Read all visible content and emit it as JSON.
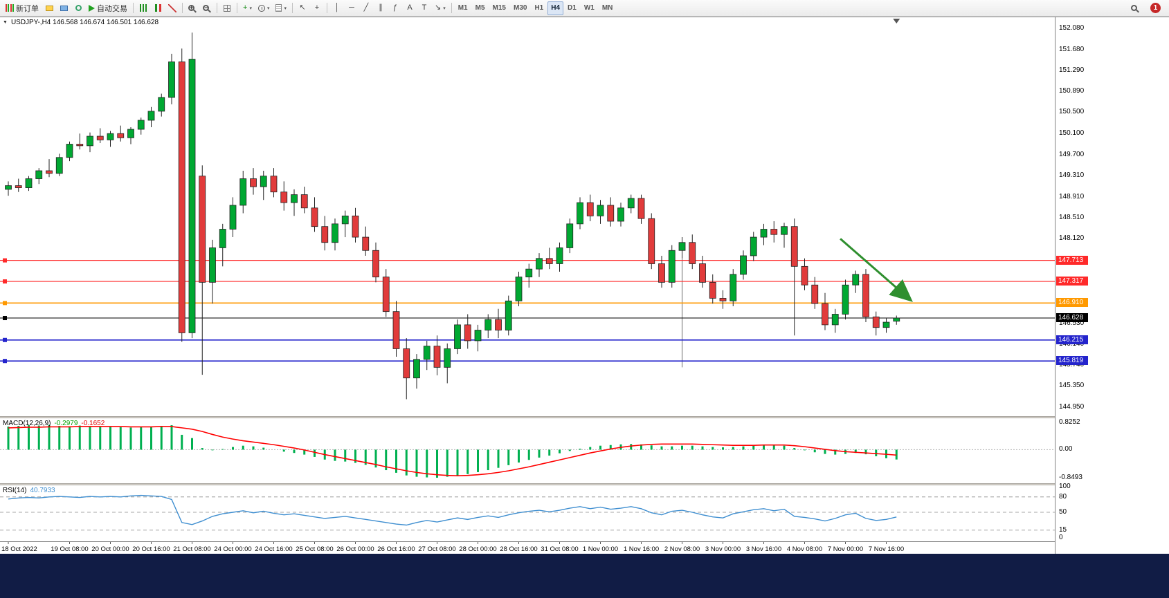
{
  "toolbar": {
    "items": [
      {
        "name": "new-order-button",
        "icon": "neworder",
        "label": "新订单"
      },
      {
        "name": "open-chart-button",
        "icon": "chartadd"
      },
      {
        "name": "profiles-button",
        "icon": "profiles"
      },
      {
        "name": "refresh-button",
        "icon": "refresh"
      },
      {
        "name": "autotrading-button",
        "icon": "play",
        "label": "自动交易"
      },
      {
        "sep": true
      },
      {
        "name": "chart-bars-button",
        "icon": "bars"
      },
      {
        "name": "chart-candles-button",
        "icon": "candle"
      },
      {
        "name": "chart-line-button",
        "icon": "linechart"
      },
      {
        "sep": true
      },
      {
        "name": "zoom-in-button",
        "icon": "magplus"
      },
      {
        "name": "zoom-out-button",
        "icon": "magminus"
      },
      {
        "sep": true
      },
      {
        "name": "tile-windows-button",
        "icon": "tile"
      },
      {
        "sep": true
      },
      {
        "name": "indicators-button",
        "glyph": "+",
        "color": "#1a8f1a",
        "caret": true
      },
      {
        "name": "periods-button",
        "icon": "clock",
        "caret": true
      },
      {
        "name": "templates-button",
        "icon": "template",
        "caret": true
      },
      {
        "sep": true
      },
      {
        "name": "cursor-button",
        "glyph": "↖"
      },
      {
        "name": "crosshair-button",
        "glyph": "+"
      },
      {
        "sep": true
      },
      {
        "name": "vertical-line-button",
        "glyph": "│"
      },
      {
        "name": "horizontal-line-button",
        "glyph": "─"
      },
      {
        "name": "trendline-button",
        "glyph": "╱"
      },
      {
        "name": "channel-button",
        "glyph": "∥"
      },
      {
        "name": "fibonacci-button",
        "glyph": "ƒ"
      },
      {
        "name": "text-button",
        "glyph": "A"
      },
      {
        "name": "text-label-button",
        "glyph": "T"
      },
      {
        "name": "arrows-button",
        "glyph": "↘",
        "caret": true
      },
      {
        "sep": true
      }
    ],
    "timeframes": [
      "M1",
      "M5",
      "M15",
      "M30",
      "H1",
      "H4",
      "D1",
      "W1",
      "MN"
    ],
    "active_timeframe": "H4",
    "notification_count": "1"
  },
  "chart": {
    "title": "USDJPY-,H4 146.568 146.674 146.501 146.628",
    "symbol": "USDJPY-",
    "period": "H4",
    "ohlc": {
      "open": "146.568",
      "high": "146.674",
      "low": "146.501",
      "close": "146.628"
    }
  },
  "macd": {
    "label": "MACD(12,26,9)",
    "value_main": "-0.2979",
    "value_signal": "-0.1652"
  },
  "rsi": {
    "label": "RSI(14)",
    "value": "40.7933"
  },
  "colors": {
    "bull": "#00a832",
    "bear": "#e13b3b",
    "candle_border": "#222222",
    "macd_hist": "#00b050",
    "macd_signal": "#ff0000",
    "rsi_line": "#3e8ed0",
    "arrow": "#2f8f2f",
    "bottom_bar": "#111c45",
    "line_red": "#ff2a2a",
    "line_orange": "#ff9900",
    "line_blue": "#2424cc",
    "line_black": "#000000"
  },
  "chart_data": {
    "type": "candlestick",
    "title": "USDJPY- H4",
    "price_axis": {
      "max": 152.08,
      "min": 144.95,
      "ticks": [
        {
          "v": 152.08,
          "t": "152.080"
        },
        {
          "v": 151.68,
          "t": "151.680"
        },
        {
          "v": 151.29,
          "t": "151.290"
        },
        {
          "v": 150.89,
          "t": "150.890"
        },
        {
          "v": 150.5,
          "t": "150.500"
        },
        {
          "v": 150.1,
          "t": "150.100"
        },
        {
          "v": 149.7,
          "t": "149.700"
        },
        {
          "v": 149.31,
          "t": "149.310"
        },
        {
          "v": 148.91,
          "t": "148.910"
        },
        {
          "v": 148.51,
          "t": "148.510"
        },
        {
          "v": 148.12,
          "t": "148.120"
        },
        {
          "v": 146.53,
          "t": "146.530"
        },
        {
          "v": 146.14,
          "t": "146.140"
        },
        {
          "v": 145.74,
          "t": "145.740"
        },
        {
          "v": 145.35,
          "t": "145.350"
        },
        {
          "v": 144.95,
          "t": "144.950"
        }
      ]
    },
    "hlines": [
      {
        "price": 147.713,
        "label": "147.713",
        "color": "#ff2a2a",
        "width": 1.2
      },
      {
        "price": 147.317,
        "label": "147.317",
        "color": "#ff2a2a",
        "width": 1.2
      },
      {
        "price": 146.91,
        "label": "146.910",
        "color": "#ff9900",
        "width": 1.6
      },
      {
        "price": 146.628,
        "label": "146.628",
        "color": "#000000",
        "width": 1.0
      },
      {
        "price": 146.215,
        "label": "146.215",
        "color": "#2424cc",
        "width": 1.6
      },
      {
        "price": 145.819,
        "label": "145.819",
        "color": "#2424cc",
        "width": 1.6
      }
    ],
    "vline": {
      "bar": 66,
      "from": 147.75,
      "to": 145.7
    },
    "arrow": {
      "from_bar": 81.5,
      "from_price": 148.12,
      "to_bar": 88.3,
      "to_price": 146.98,
      "color": "#2f8f2f"
    },
    "candles": [
      [
        149.05,
        149.2,
        148.93,
        149.12
      ],
      [
        149.12,
        149.25,
        149.0,
        149.08
      ],
      [
        149.08,
        149.3,
        149.02,
        149.25
      ],
      [
        149.25,
        149.45,
        149.15,
        149.4
      ],
      [
        149.4,
        149.62,
        149.28,
        149.35
      ],
      [
        149.35,
        149.72,
        149.3,
        149.65
      ],
      [
        149.65,
        149.95,
        149.58,
        149.9
      ],
      [
        149.9,
        150.1,
        149.8,
        149.87
      ],
      [
        149.87,
        150.12,
        149.75,
        150.05
      ],
      [
        150.05,
        150.2,
        149.92,
        149.98
      ],
      [
        149.98,
        150.15,
        149.85,
        150.1
      ],
      [
        150.1,
        150.25,
        149.95,
        150.02
      ],
      [
        150.02,
        150.22,
        149.9,
        150.18
      ],
      [
        150.18,
        150.4,
        150.08,
        150.35
      ],
      [
        150.35,
        150.6,
        150.22,
        150.52
      ],
      [
        150.52,
        150.85,
        150.42,
        150.78
      ],
      [
        150.78,
        151.6,
        150.65,
        151.45
      ],
      [
        151.45,
        151.7,
        146.18,
        146.35
      ],
      [
        146.35,
        152.0,
        146.25,
        151.5
      ],
      [
        149.3,
        149.5,
        145.56,
        147.3
      ],
      [
        147.3,
        148.1,
        146.9,
        147.95
      ],
      [
        147.95,
        148.4,
        147.6,
        148.3
      ],
      [
        148.3,
        148.9,
        148.15,
        148.75
      ],
      [
        148.75,
        149.4,
        148.6,
        149.25
      ],
      [
        149.25,
        149.45,
        148.95,
        149.1
      ],
      [
        149.1,
        149.4,
        148.85,
        149.3
      ],
      [
        149.3,
        149.45,
        148.9,
        149.0
      ],
      [
        149.0,
        149.2,
        148.65,
        148.8
      ],
      [
        148.8,
        149.05,
        148.55,
        148.95
      ],
      [
        148.95,
        149.1,
        148.6,
        148.7
      ],
      [
        148.7,
        148.9,
        148.25,
        148.35
      ],
      [
        148.35,
        148.55,
        147.9,
        148.05
      ],
      [
        148.05,
        148.5,
        147.9,
        148.4
      ],
      [
        148.4,
        148.65,
        148.15,
        148.55
      ],
      [
        148.55,
        148.7,
        148.05,
        148.15
      ],
      [
        148.15,
        148.35,
        147.8,
        147.9
      ],
      [
        147.9,
        148.05,
        147.3,
        147.4
      ],
      [
        147.4,
        147.55,
        146.65,
        146.75
      ],
      [
        146.75,
        146.95,
        145.9,
        146.05
      ],
      [
        146.05,
        146.25,
        145.1,
        145.5
      ],
      [
        145.5,
        145.95,
        145.3,
        145.85
      ],
      [
        145.85,
        146.2,
        145.65,
        146.1
      ],
      [
        146.1,
        146.3,
        145.55,
        145.7
      ],
      [
        145.7,
        146.15,
        145.4,
        146.05
      ],
      [
        146.05,
        146.6,
        145.95,
        146.5
      ],
      [
        146.5,
        146.7,
        146.05,
        146.2
      ],
      [
        146.2,
        146.5,
        146.0,
        146.4
      ],
      [
        146.4,
        146.7,
        146.25,
        146.6
      ],
      [
        146.6,
        146.8,
        146.25,
        146.4
      ],
      [
        146.4,
        147.05,
        146.3,
        146.95
      ],
      [
        146.95,
        147.5,
        146.85,
        147.4
      ],
      [
        147.4,
        147.65,
        147.2,
        147.55
      ],
      [
        147.55,
        147.85,
        147.4,
        147.75
      ],
      [
        147.75,
        147.95,
        147.55,
        147.65
      ],
      [
        147.65,
        148.05,
        147.5,
        147.95
      ],
      [
        147.95,
        148.5,
        147.85,
        148.4
      ],
      [
        148.4,
        148.9,
        148.3,
        148.8
      ],
      [
        148.8,
        148.95,
        148.45,
        148.55
      ],
      [
        148.55,
        148.85,
        148.4,
        148.75
      ],
      [
        148.75,
        148.9,
        148.35,
        148.45
      ],
      [
        148.45,
        148.8,
        148.35,
        148.7
      ],
      [
        148.7,
        148.95,
        148.6,
        148.88
      ],
      [
        148.88,
        148.95,
        148.4,
        148.5
      ],
      [
        148.5,
        148.6,
        147.55,
        147.65
      ],
      [
        147.65,
        147.8,
        147.2,
        147.3
      ],
      [
        147.3,
        148.0,
        147.2,
        147.9
      ],
      [
        147.9,
        148.15,
        147.75,
        148.05
      ],
      [
        148.05,
        148.2,
        147.55,
        147.65
      ],
      [
        147.65,
        147.8,
        147.2,
        147.3
      ],
      [
        147.3,
        147.45,
        146.9,
        147.0
      ],
      [
        147.0,
        147.15,
        146.8,
        146.95
      ],
      [
        146.95,
        147.55,
        146.85,
        147.45
      ],
      [
        147.45,
        147.9,
        147.35,
        147.8
      ],
      [
        147.8,
        148.25,
        147.7,
        148.15
      ],
      [
        148.15,
        148.4,
        148.0,
        148.3
      ],
      [
        148.3,
        148.45,
        148.05,
        148.2
      ],
      [
        148.2,
        148.42,
        147.95,
        148.35
      ],
      [
        148.35,
        148.5,
        146.3,
        147.6
      ],
      [
        147.6,
        147.75,
        147.15,
        147.25
      ],
      [
        147.25,
        147.4,
        146.8,
        146.9
      ],
      [
        146.9,
        147.1,
        146.4,
        146.5
      ],
      [
        146.5,
        146.8,
        146.35,
        146.7
      ],
      [
        146.7,
        147.35,
        146.6,
        147.25
      ],
      [
        147.25,
        147.52,
        147.1,
        147.45
      ],
      [
        147.45,
        147.55,
        146.55,
        146.65
      ],
      [
        146.65,
        146.75,
        146.3,
        146.45
      ],
      [
        146.45,
        146.62,
        146.35,
        146.55
      ],
      [
        146.568,
        146.674,
        146.501,
        146.628
      ]
    ],
    "time_labels": [
      {
        "bar": 0,
        "text": "18 Oct 2022"
      },
      {
        "bar": 6,
        "text": "19 Oct 08:00"
      },
      {
        "bar": 10,
        "text": "20 Oct 00:00"
      },
      {
        "bar": 14,
        "text": "20 Oct 16:00"
      },
      {
        "bar": 18,
        "text": "21 Oct 08:00"
      },
      {
        "bar": 22,
        "text": "24 Oct 00:00"
      },
      {
        "bar": 26,
        "text": "24 Oct 16:00"
      },
      {
        "bar": 30,
        "text": "25 Oct 08:00"
      },
      {
        "bar": 34,
        "text": "26 Oct 00:00"
      },
      {
        "bar": 38,
        "text": "26 Oct 16:00"
      },
      {
        "bar": 42,
        "text": "27 Oct 08:00"
      },
      {
        "bar": 46,
        "text": "28 Oct 00:00"
      },
      {
        "bar": 50,
        "text": "28 Oct 16:00"
      },
      {
        "bar": 54,
        "text": "31 Oct 08:00"
      },
      {
        "bar": 58,
        "text": "1 Nov 00:00"
      },
      {
        "bar": 62,
        "text": "1 Nov 16:00"
      },
      {
        "bar": 66,
        "text": "2 Nov 08:00"
      },
      {
        "bar": 70,
        "text": "3 Nov 00:00"
      },
      {
        "bar": 74,
        "text": "3 Nov 16:00"
      },
      {
        "bar": 78,
        "text": "4 Nov 08:00"
      },
      {
        "bar": 82,
        "text": "7 Nov 00:00"
      },
      {
        "bar": 86,
        "text": "7 Nov 16:00"
      }
    ],
    "macd": {
      "max": 0.8252,
      "min": -0.8493,
      "scale_labels": [
        {
          "v": 0.8252,
          "t": "0.8252"
        },
        {
          "v": 0,
          "t": "0.00"
        },
        {
          "v": -0.8493,
          "t": "-0.8493"
        }
      ],
      "histogram": [
        0.7,
        0.72,
        0.74,
        0.73,
        0.75,
        0.72,
        0.71,
        0.73,
        0.7,
        0.69,
        0.71,
        0.68,
        0.67,
        0.68,
        0.7,
        0.72,
        0.74,
        0.45,
        0.35,
        0.05,
        -0.02,
        0.02,
        0.08,
        0.12,
        0.1,
        0.06,
        0.0,
        -0.06,
        -0.1,
        -0.15,
        -0.22,
        -0.3,
        -0.34,
        -0.36,
        -0.4,
        -0.46,
        -0.54,
        -0.62,
        -0.7,
        -0.78,
        -0.82,
        -0.84,
        -0.85,
        -0.82,
        -0.78,
        -0.74,
        -0.68,
        -0.62,
        -0.55,
        -0.47,
        -0.39,
        -0.31,
        -0.24,
        -0.18,
        -0.11,
        -0.04,
        0.03,
        0.08,
        0.12,
        0.14,
        0.16,
        0.17,
        0.16,
        0.13,
        0.1,
        0.1,
        0.12,
        0.12,
        0.1,
        0.08,
        0.07,
        0.08,
        0.1,
        0.12,
        0.13,
        0.13,
        0.12,
        0.05,
        -0.02,
        -0.08,
        -0.13,
        -0.15,
        -0.13,
        -0.1,
        -0.14,
        -0.2,
        -0.26,
        -0.2979
      ],
      "signal": [
        0.66,
        0.67,
        0.68,
        0.68,
        0.69,
        0.69,
        0.69,
        0.7,
        0.7,
        0.7,
        0.7,
        0.7,
        0.69,
        0.69,
        0.69,
        0.7,
        0.7,
        0.66,
        0.62,
        0.55,
        0.46,
        0.38,
        0.32,
        0.27,
        0.23,
        0.19,
        0.15,
        0.1,
        0.05,
        -0.01,
        -0.08,
        -0.15,
        -0.21,
        -0.27,
        -0.33,
        -0.39,
        -0.45,
        -0.52,
        -0.58,
        -0.64,
        -0.69,
        -0.73,
        -0.76,
        -0.78,
        -0.79,
        -0.78,
        -0.76,
        -0.73,
        -0.69,
        -0.64,
        -0.58,
        -0.52,
        -0.45,
        -0.38,
        -0.31,
        -0.24,
        -0.17,
        -0.1,
        -0.04,
        0.02,
        0.07,
        0.11,
        0.14,
        0.16,
        0.17,
        0.17,
        0.17,
        0.17,
        0.16,
        0.15,
        0.14,
        0.13,
        0.13,
        0.13,
        0.14,
        0.14,
        0.14,
        0.12,
        0.09,
        0.05,
        0.01,
        -0.03,
        -0.06,
        -0.08,
        -0.1,
        -0.12,
        -0.14,
        -0.1652
      ]
    },
    "rsi": {
      "levels": [
        80,
        50,
        15
      ],
      "scale_labels": [
        {
          "v": 100,
          "t": "100"
        },
        {
          "v": 80,
          "t": "80"
        },
        {
          "v": 50,
          "t": "50"
        },
        {
          "v": 15,
          "t": "15"
        },
        {
          "v": 0,
          "t": "0"
        }
      ],
      "values": [
        76,
        78,
        79,
        78,
        80,
        81,
        80,
        79,
        81,
        80,
        81,
        80,
        82,
        83,
        82,
        81,
        75,
        30,
        26,
        33,
        42,
        47,
        50,
        53,
        49,
        52,
        48,
        45,
        47,
        44,
        41,
        38,
        40,
        42,
        39,
        36,
        33,
        30,
        27,
        25,
        30,
        34,
        31,
        35,
        39,
        36,
        40,
        43,
        40,
        45,
        49,
        52,
        54,
        51,
        54,
        58,
        61,
        57,
        60,
        56,
        58,
        61,
        57,
        49,
        45,
        52,
        54,
        50,
        45,
        41,
        39,
        47,
        51,
        55,
        57,
        53,
        56,
        42,
        40,
        37,
        33,
        38,
        45,
        48,
        38,
        34,
        36,
        40.7933
      ]
    }
  }
}
